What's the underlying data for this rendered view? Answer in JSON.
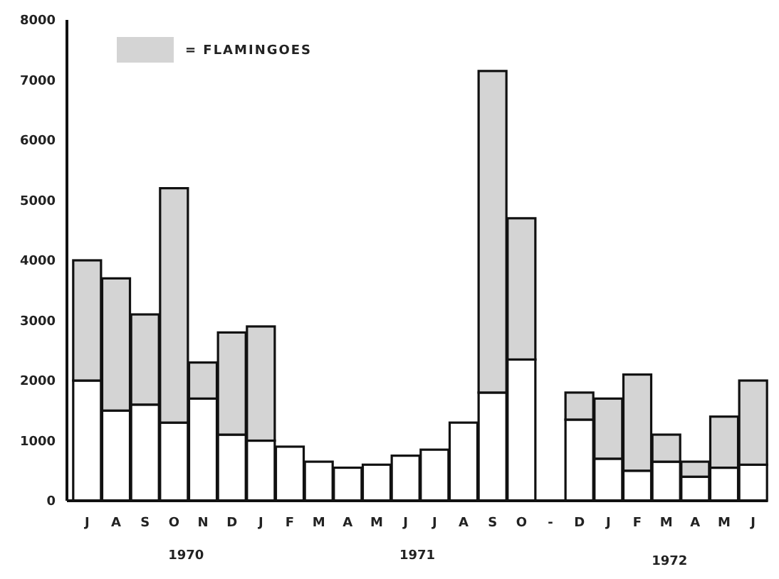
{
  "chart_data": {
    "type": "bar",
    "stacked": true,
    "categories": [
      "J",
      "A",
      "S",
      "O",
      "N",
      "D",
      "J",
      "F",
      "M",
      "A",
      "M",
      "J",
      "J",
      "A",
      "S",
      "O",
      "-",
      "D",
      "J",
      "F",
      "M",
      "A",
      "M",
      "J"
    ],
    "series": [
      {
        "color": "#ffffff",
        "values": [
          2000,
          1500,
          1600,
          1300,
          1700,
          1100,
          1000,
          900,
          650,
          550,
          600,
          750,
          850,
          1300,
          1800,
          2350,
          null,
          1350,
          700,
          500,
          650,
          400,
          550,
          600
        ]
      },
      {
        "name": "= FLAMINGOES",
        "color": "#d4d4d4",
        "values": [
          2000,
          2200,
          1500,
          3900,
          600,
          1700,
          1900,
          null,
          null,
          null,
          null,
          null,
          null,
          null,
          5350,
          2350,
          null,
          450,
          1000,
          1600,
          450,
          250,
          850,
          1400
        ]
      }
    ],
    "ylim": [
      0,
      8000
    ],
    "yticks": [
      0,
      1000,
      2000,
      3000,
      4000,
      5000,
      6000,
      7000,
      8000
    ],
    "legend": "top left",
    "grid": false,
    "annotations": [
      "1970",
      "1971",
      "1972"
    ]
  }
}
